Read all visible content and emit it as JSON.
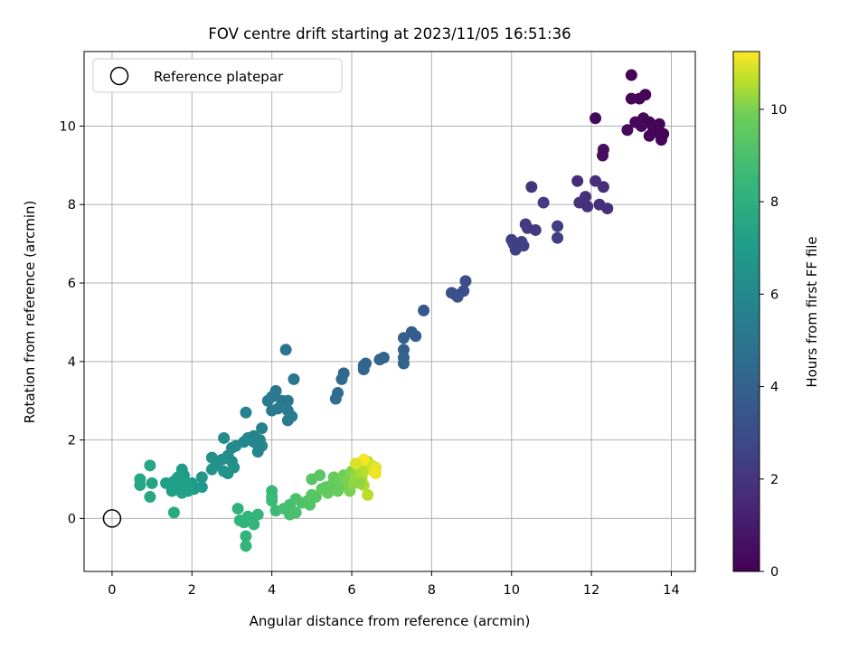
{
  "chart_data": {
    "type": "scatter",
    "title": "FOV centre drift starting at 2023/11/05 16:51:36",
    "xlabel": "Angular distance from reference (arcmin)",
    "ylabel": "Rotation from reference (arcmin)",
    "xlim": [
      -0.7,
      14.6
    ],
    "ylim": [
      -1.35,
      11.9
    ],
    "x_ticks": [
      0,
      2,
      4,
      6,
      8,
      10,
      12,
      14
    ],
    "y_ticks": [
      0,
      2,
      4,
      6,
      8,
      10
    ],
    "grid": true,
    "legend": {
      "placement": "top-left",
      "entries": [
        "Reference platepar"
      ]
    },
    "reference_point": {
      "x": 0,
      "y": 0
    },
    "colorbar": {
      "label": "Hours from first FF file",
      "min": 0,
      "max": 11.25,
      "ticks": [
        0,
        2,
        4,
        6,
        8,
        10
      ],
      "colormap": "viridis"
    },
    "series": [
      {
        "points": [
          [
            13.0,
            11.3,
            0.1
          ],
          [
            12.1,
            10.2,
            0.3
          ],
          [
            13.0,
            10.7,
            0.2
          ],
          [
            13.2,
            10.7,
            0.2
          ],
          [
            13.35,
            10.8,
            0.2
          ],
          [
            12.9,
            9.9,
            0.4
          ],
          [
            13.1,
            10.1,
            0.3
          ],
          [
            13.3,
            10.2,
            0.3
          ],
          [
            13.45,
            10.1,
            0.2
          ],
          [
            13.25,
            10.0,
            0.3
          ],
          [
            13.55,
            9.95,
            0.2
          ],
          [
            13.7,
            10.05,
            0.2
          ],
          [
            13.6,
            9.85,
            0.2
          ],
          [
            13.45,
            9.75,
            0.2
          ],
          [
            13.8,
            9.8,
            0.1
          ],
          [
            13.75,
            9.65,
            0.2
          ],
          [
            12.3,
            9.4,
            0.5
          ],
          [
            12.28,
            9.25,
            0.5
          ],
          [
            11.65,
            8.6,
            1.6
          ],
          [
            12.1,
            8.6,
            1.8
          ],
          [
            12.3,
            8.45,
            1.7
          ],
          [
            11.85,
            8.2,
            1.8
          ],
          [
            11.7,
            8.05,
            1.9
          ],
          [
            11.9,
            7.95,
            1.9
          ],
          [
            12.2,
            8.0,
            1.7
          ],
          [
            12.4,
            7.9,
            1.8
          ],
          [
            10.5,
            8.45,
            2.0
          ],
          [
            10.8,
            8.05,
            2.2
          ],
          [
            10.35,
            7.5,
            2.2
          ],
          [
            10.4,
            7.4,
            2.3
          ],
          [
            10.6,
            7.35,
            2.2
          ],
          [
            11.15,
            7.45,
            2.3
          ],
          [
            11.15,
            7.15,
            2.4
          ],
          [
            10.0,
            7.1,
            2.4
          ],
          [
            10.1,
            6.85,
            2.5
          ],
          [
            10.25,
            7.05,
            2.5
          ],
          [
            10.3,
            6.95,
            2.5
          ],
          [
            10.05,
            7.0,
            2.4
          ],
          [
            8.85,
            6.05,
            3.0
          ],
          [
            8.5,
            5.75,
            3.2
          ],
          [
            8.6,
            5.7,
            3.2
          ],
          [
            8.8,
            5.8,
            3.1
          ],
          [
            8.65,
            5.65,
            3.2
          ],
          [
            7.8,
            5.3,
            3.5
          ],
          [
            7.5,
            4.75,
            3.8
          ],
          [
            7.6,
            4.65,
            3.8
          ],
          [
            7.3,
            4.6,
            3.9
          ],
          [
            7.3,
            4.3,
            3.9
          ],
          [
            7.3,
            4.1,
            4.0
          ],
          [
            7.3,
            3.95,
            4.0
          ],
          [
            6.8,
            4.1,
            4.1
          ],
          [
            6.7,
            4.05,
            4.1
          ],
          [
            6.35,
            3.95,
            4.2
          ],
          [
            6.3,
            3.8,
            4.2
          ],
          [
            6.3,
            3.9,
            4.2
          ],
          [
            5.8,
            3.7,
            4.3
          ],
          [
            5.75,
            3.55,
            4.4
          ],
          [
            5.65,
            3.2,
            4.5
          ],
          [
            5.6,
            3.05,
            4.5
          ],
          [
            4.35,
            4.3,
            4.9
          ],
          [
            4.55,
            3.55,
            5.0
          ],
          [
            4.4,
            3.0,
            5.1
          ],
          [
            4.1,
            3.25,
            5.1
          ],
          [
            4.25,
            3.0,
            5.1
          ],
          [
            4.0,
            3.1,
            5.2
          ],
          [
            3.9,
            3.0,
            5.3
          ],
          [
            4.0,
            2.75,
            5.2
          ],
          [
            4.15,
            2.8,
            5.2
          ],
          [
            4.4,
            2.75,
            5.2
          ],
          [
            4.5,
            2.6,
            5.3
          ],
          [
            4.4,
            2.5,
            5.3
          ],
          [
            3.35,
            2.7,
            5.6
          ],
          [
            3.75,
            2.3,
            5.7
          ],
          [
            3.7,
            2.0,
            5.8
          ],
          [
            3.55,
            2.1,
            5.8
          ],
          [
            3.4,
            2.05,
            5.8
          ],
          [
            3.3,
            1.95,
            5.9
          ],
          [
            3.55,
            1.95,
            5.9
          ],
          [
            3.75,
            1.85,
            5.9
          ],
          [
            3.65,
            1.7,
            5.9
          ],
          [
            3.0,
            1.8,
            6.1
          ],
          [
            3.1,
            1.85,
            6.1
          ],
          [
            2.9,
            1.6,
            6.2
          ],
          [
            3.0,
            1.45,
            6.2
          ],
          [
            2.75,
            1.5,
            6.3
          ],
          [
            2.8,
            2.05,
            6.2
          ],
          [
            2.5,
            1.55,
            6.4
          ],
          [
            2.6,
            1.35,
            6.4
          ],
          [
            2.5,
            1.25,
            6.5
          ],
          [
            2.8,
            1.2,
            6.5
          ],
          [
            3.05,
            1.3,
            6.4
          ],
          [
            2.9,
            1.15,
            6.5
          ],
          [
            2.25,
            1.05,
            6.7
          ],
          [
            2.25,
            0.8,
            6.8
          ],
          [
            2.0,
            0.9,
            6.9
          ],
          [
            2.05,
            0.75,
            7.0
          ],
          [
            1.75,
            1.25,
            7.0
          ],
          [
            1.8,
            1.1,
            7.0
          ],
          [
            1.65,
            1.05,
            7.1
          ],
          [
            1.55,
            0.95,
            7.1
          ],
          [
            1.35,
            0.9,
            7.2
          ],
          [
            1.5,
            0.7,
            7.2
          ],
          [
            1.75,
            0.65,
            7.3
          ],
          [
            1.9,
            0.7,
            7.2
          ],
          [
            1.8,
            0.9,
            7.2
          ],
          [
            1.65,
            0.85,
            7.2
          ],
          [
            1.0,
            0.9,
            7.4
          ],
          [
            0.95,
            1.35,
            7.5
          ],
          [
            0.7,
            1.0,
            7.6
          ],
          [
            0.7,
            0.85,
            7.6
          ],
          [
            0.95,
            0.55,
            7.6
          ],
          [
            1.55,
            0.15,
            7.7
          ],
          [
            3.15,
            0.25,
            8.1
          ],
          [
            3.3,
            -0.1,
            8.2
          ],
          [
            3.2,
            -0.05,
            8.2
          ],
          [
            3.4,
            0.05,
            8.2
          ],
          [
            3.65,
            0.1,
            8.3
          ],
          [
            3.55,
            -0.15,
            8.3
          ],
          [
            3.35,
            -0.45,
            8.3
          ],
          [
            3.35,
            -0.7,
            8.3
          ],
          [
            4.0,
            0.7,
            8.5
          ],
          [
            4.0,
            0.55,
            8.5
          ],
          [
            4.1,
            0.2,
            8.6
          ],
          [
            4.0,
            0.45,
            8.6
          ],
          [
            4.3,
            0.25,
            8.8
          ],
          [
            4.45,
            0.1,
            8.9
          ],
          [
            4.45,
            0.35,
            8.9
          ],
          [
            4.6,
            0.15,
            9.0
          ],
          [
            4.6,
            0.5,
            9.0
          ],
          [
            4.75,
            0.4,
            9.1
          ],
          [
            4.9,
            0.45,
            9.2
          ],
          [
            4.95,
            0.35,
            9.2
          ],
          [
            5.0,
            0.6,
            9.3
          ],
          [
            5.1,
            0.55,
            9.3
          ],
          [
            5.0,
            1.0,
            9.3
          ],
          [
            5.2,
            1.1,
            9.4
          ],
          [
            5.25,
            0.75,
            9.5
          ],
          [
            5.35,
            0.8,
            9.5
          ],
          [
            5.4,
            0.65,
            9.6
          ],
          [
            5.5,
            0.85,
            9.6
          ],
          [
            5.55,
            1.05,
            9.7
          ],
          [
            5.65,
            0.7,
            9.7
          ],
          [
            5.7,
            0.95,
            9.8
          ],
          [
            5.8,
            0.85,
            9.8
          ],
          [
            5.8,
            1.1,
            9.9
          ],
          [
            5.9,
            0.95,
            10.0
          ],
          [
            5.95,
            0.7,
            10.0
          ],
          [
            6.0,
            1.2,
            10.1
          ],
          [
            6.05,
            0.9,
            10.2
          ],
          [
            6.1,
            1.05,
            10.3
          ],
          [
            6.15,
            1.35,
            10.3
          ],
          [
            6.2,
            1.25,
            10.4
          ],
          [
            6.25,
            1.05,
            10.5
          ],
          [
            6.3,
            0.85,
            10.5
          ],
          [
            6.35,
            1.25,
            10.6
          ],
          [
            6.4,
            1.45,
            10.7
          ],
          [
            6.5,
            1.35,
            10.8
          ],
          [
            6.55,
            1.2,
            10.9
          ],
          [
            6.6,
            1.3,
            11.0
          ],
          [
            6.6,
            1.15,
            11.1
          ],
          [
            6.4,
            0.6,
            10.6
          ],
          [
            6.3,
            1.5,
            11.2
          ],
          [
            6.1,
            1.4,
            10.9
          ],
          [
            6.2,
            0.9,
            10.2
          ]
        ]
      }
    ]
  }
}
